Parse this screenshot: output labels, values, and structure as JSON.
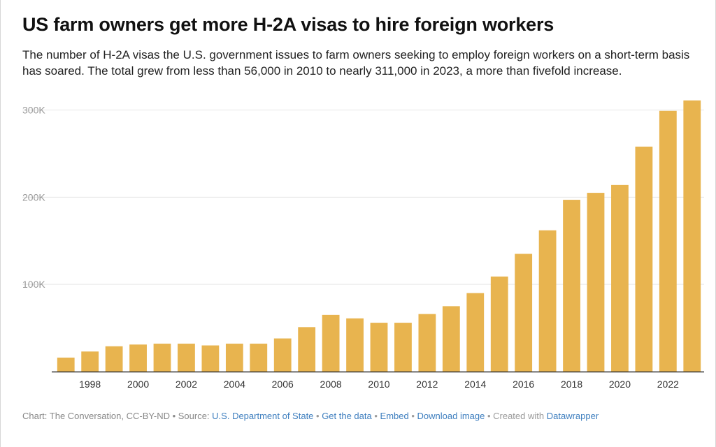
{
  "title": "US farm owners get more H-2A visas to hire foreign workers",
  "subtitle": "The number of H-2A visas the U.S. government issues to farm owners seeking to employ foreign workers on a short-term basis has soared. The total grew from less than 56,000 in 2010 to nearly 311,000 in 2023, a more than fivefold increase.",
  "colors": {
    "bar": "#e8b44f",
    "grid": "#e6e6e6",
    "axis": "#333333",
    "tick_label": "#9a9a9a",
    "link": "#3f7fbf"
  },
  "chart_data": {
    "type": "bar",
    "x": [
      1997,
      1998,
      1999,
      2000,
      2001,
      2002,
      2003,
      2004,
      2005,
      2006,
      2007,
      2008,
      2009,
      2010,
      2011,
      2012,
      2013,
      2014,
      2015,
      2016,
      2017,
      2018,
      2019,
      2020,
      2021,
      2022,
      2023
    ],
    "values": [
      16000,
      23000,
      29000,
      31000,
      32000,
      32000,
      30000,
      32000,
      32000,
      38000,
      51000,
      65000,
      61000,
      56000,
      56000,
      66000,
      75000,
      90000,
      109000,
      135000,
      162000,
      197000,
      205000,
      214000,
      258000,
      299000,
      311000
    ],
    "xtick_labels": [
      "1998",
      "2000",
      "2002",
      "2004",
      "2006",
      "2008",
      "2010",
      "2012",
      "2014",
      "2016",
      "2018",
      "2020",
      "2022"
    ],
    "ytick_values": [
      100000,
      200000,
      300000
    ],
    "ytick_labels": [
      "100K",
      "200K",
      "300K"
    ],
    "ylim": [
      0,
      310000
    ],
    "grid": true
  },
  "footer": {
    "prefix": "Chart: The Conversation, CC-BY-ND • Source: ",
    "source_link": "U.S. Department of State",
    "sep1": " • ",
    "get_data": "Get the data",
    "sep2": " • ",
    "embed": "Embed",
    "sep3": "  • ",
    "download": "Download image",
    "sep4": " • Created with ",
    "datawrapper": "Datawrapper"
  }
}
